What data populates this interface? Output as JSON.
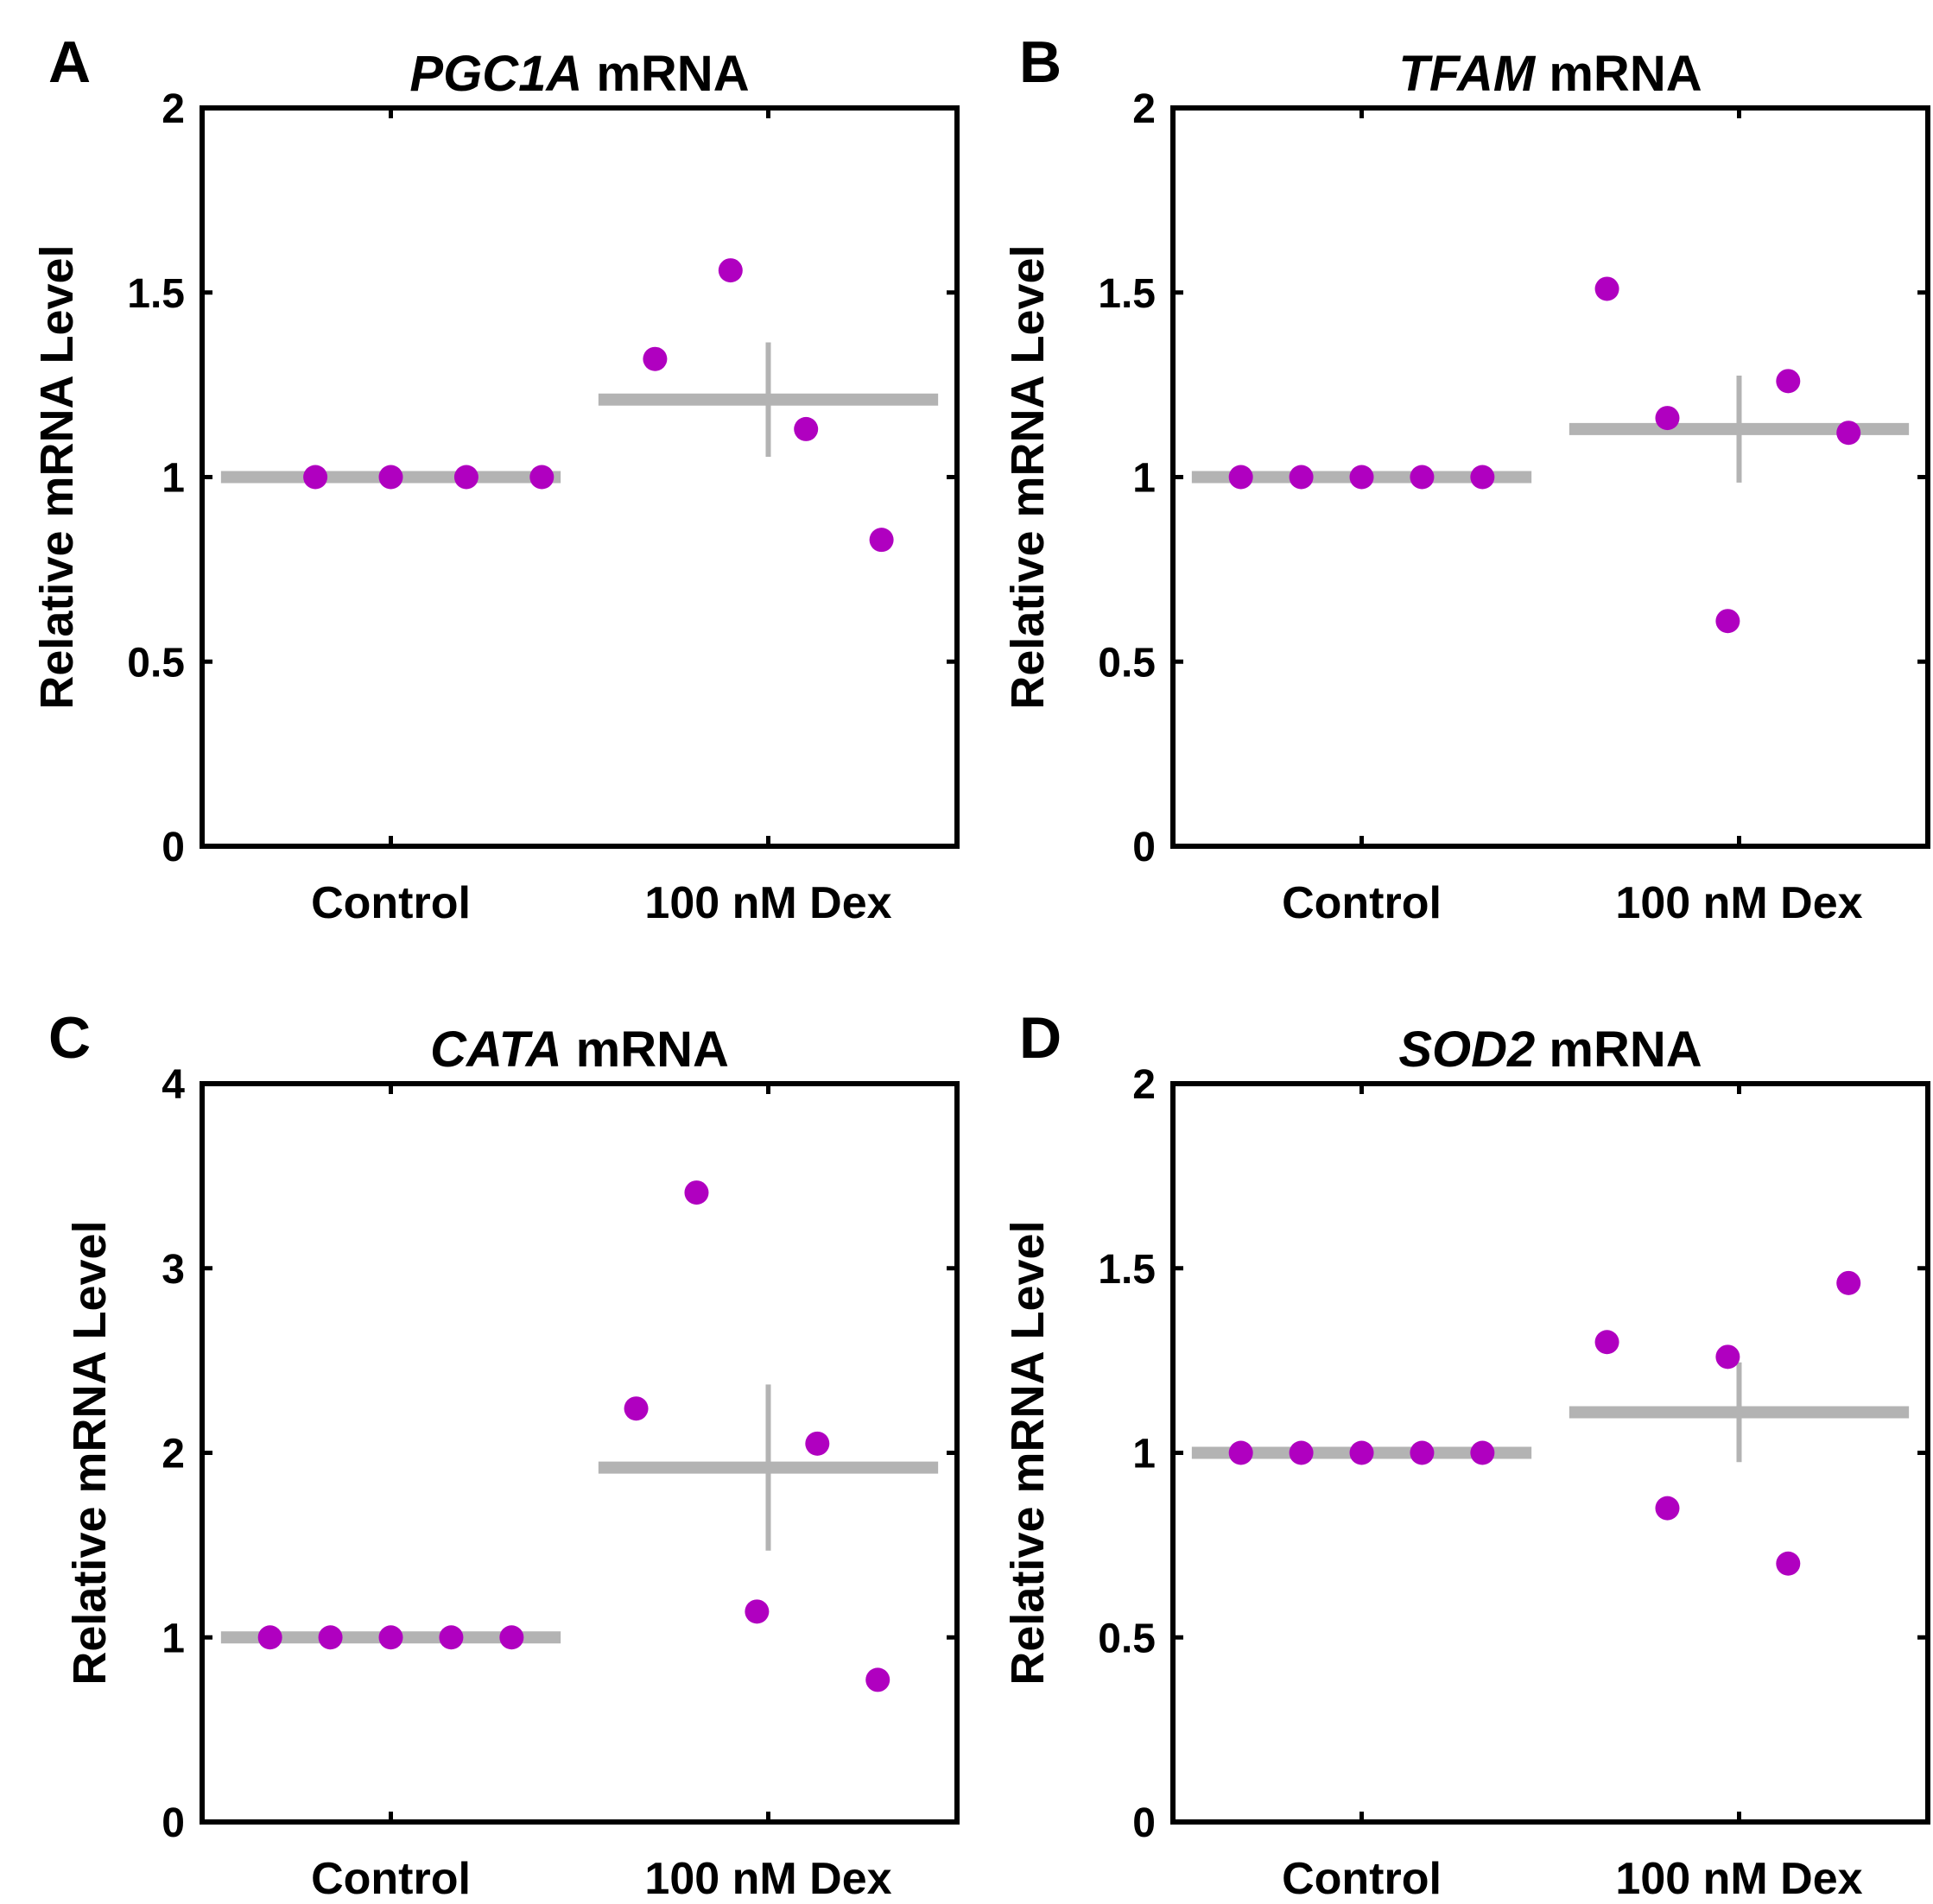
{
  "figure": {
    "colors": {
      "point": "#B000C0",
      "summary": "#B3B3B3",
      "axis": "#000000"
    }
  },
  "chart_data": [
    {
      "type": "scatter",
      "panel": "A",
      "title_gene": "PGC1A",
      "title_suffix": "mRNA",
      "ylabel": "Relative mRNA Level",
      "categories": [
        "Control",
        "100 nM Dex"
      ],
      "ylim": [
        0,
        2
      ],
      "yticks": [
        0,
        0.5,
        1,
        1.5,
        2
      ],
      "ytick_labels": [
        "0",
        "0.5",
        "1",
        "1.5",
        "2"
      ],
      "series": [
        {
          "name": "Control",
          "x": [
            0.8,
            1.0,
            1.2,
            1.4
          ],
          "y": [
            1.0,
            1.0,
            1.0,
            1.0
          ]
        },
        {
          "name": "100 nM Dex",
          "x": [
            1.7,
            1.9,
            2.1,
            2.3
          ],
          "y": [
            1.32,
            1.56,
            1.13,
            0.83
          ]
        }
      ],
      "summary": [
        {
          "category": "Control",
          "mean": 1.0,
          "err": 0
        },
        {
          "category": "100 nM Dex",
          "mean": 1.21,
          "err": 0.155
        }
      ]
    },
    {
      "type": "scatter",
      "panel": "B",
      "title_gene": "TFAM",
      "title_suffix": "mRNA",
      "ylabel": "Relative mRNA Level",
      "categories": [
        "Control",
        "100 nM Dex"
      ],
      "ylim": [
        0,
        2
      ],
      "yticks": [
        0,
        0.5,
        1,
        1.5,
        2
      ],
      "ytick_labels": [
        "0",
        "0.5",
        "1",
        "1.5",
        "2"
      ],
      "series": [
        {
          "name": "Control",
          "x": [
            0.68,
            0.84,
            1.0,
            1.16,
            1.32
          ],
          "y": [
            1.0,
            1.0,
            1.0,
            1.0,
            1.0
          ]
        },
        {
          "name": "100 nM Dex",
          "x": [
            1.65,
            1.81,
            1.97,
            2.13,
            2.29
          ],
          "y": [
            1.51,
            1.16,
            0.61,
            1.26,
            1.12
          ]
        }
      ],
      "summary": [
        {
          "category": "Control",
          "mean": 1.0,
          "err": 0
        },
        {
          "category": "100 nM Dex",
          "mean": 1.13,
          "err": 0.145
        }
      ]
    },
    {
      "type": "scatter",
      "panel": "C",
      "title_gene": "CATA",
      "title_suffix": "mRNA",
      "ylabel": "Relative mRNA Level",
      "categories": [
        "Control",
        "100 nM Dex"
      ],
      "ylim": [
        0,
        4
      ],
      "yticks": [
        0,
        1,
        2,
        3,
        4
      ],
      "ytick_labels": [
        "0",
        "1",
        "2",
        "3",
        "4"
      ],
      "series": [
        {
          "name": "Control",
          "x": [
            0.68,
            0.84,
            1.0,
            1.16,
            1.32
          ],
          "y": [
            1.0,
            1.0,
            1.0,
            1.0,
            1.0
          ]
        },
        {
          "name": "100 nM Dex",
          "x": [
            1.65,
            1.81,
            1.97,
            2.13,
            2.29
          ],
          "y": [
            2.24,
            3.41,
            1.14,
            2.05,
            0.77
          ]
        }
      ],
      "summary": [
        {
          "category": "Control",
          "mean": 1.0,
          "err": 0
        },
        {
          "category": "100 nM Dex",
          "mean": 1.92,
          "err": 0.45
        }
      ]
    },
    {
      "type": "scatter",
      "panel": "D",
      "title_gene": "SOD2",
      "title_suffix": "mRNA",
      "ylabel": "Relative mRNA Level",
      "categories": [
        "Control",
        "100 nM Dex"
      ],
      "ylim": [
        0,
        2
      ],
      "yticks": [
        0,
        0.5,
        1,
        1.5,
        2
      ],
      "ytick_labels": [
        "0",
        "0.5",
        "1",
        "1.5",
        "2"
      ],
      "series": [
        {
          "name": "Control",
          "x": [
            0.68,
            0.84,
            1.0,
            1.16,
            1.32
          ],
          "y": [
            1.0,
            1.0,
            1.0,
            1.0,
            1.0
          ]
        },
        {
          "name": "100 nM Dex",
          "x": [
            1.65,
            1.81,
            1.97,
            2.13,
            2.29
          ],
          "y": [
            1.3,
            0.85,
            1.26,
            0.7,
            1.46
          ]
        }
      ],
      "summary": [
        {
          "category": "Control",
          "mean": 1.0,
          "err": 0
        },
        {
          "category": "100 nM Dex",
          "mean": 1.11,
          "err": 0.135
        }
      ]
    }
  ]
}
